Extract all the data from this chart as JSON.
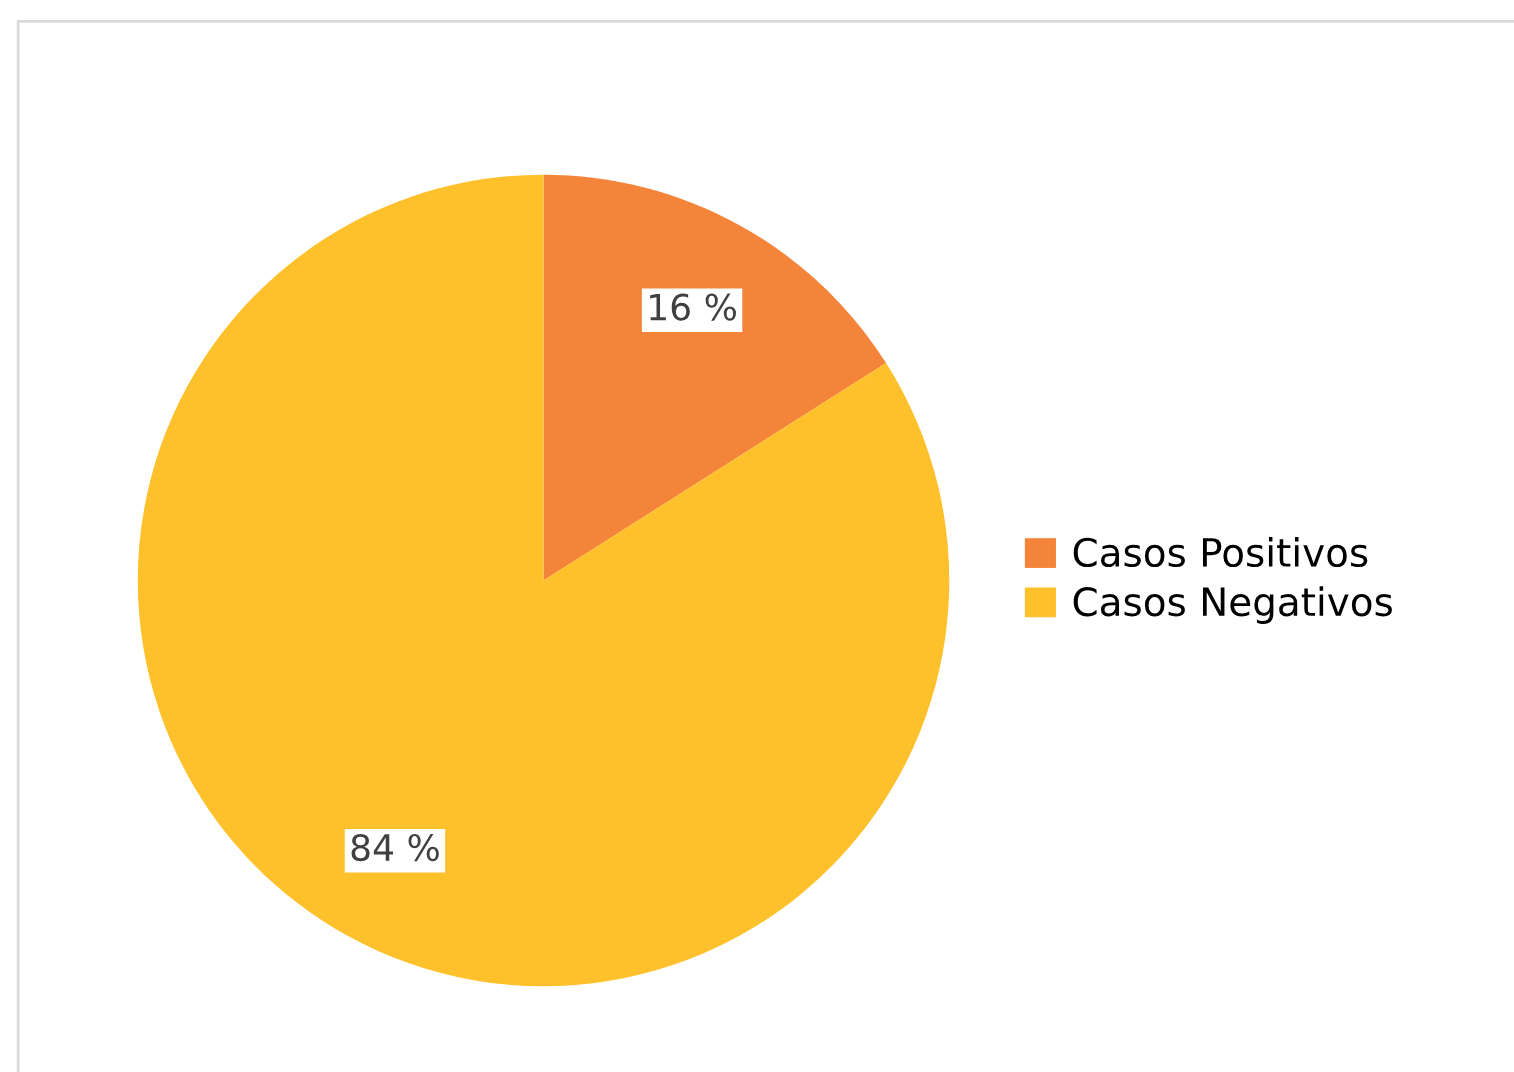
{
  "chart_data": {
    "type": "pie",
    "categories": [
      "Casos Positivos",
      "Casos Negativos"
    ],
    "values": [
      16,
      84
    ],
    "colors": [
      "#f4843a",
      "#ffc12b"
    ],
    "value_labels": [
      "16 %",
      "84 %"
    ],
    "legend": "right"
  }
}
